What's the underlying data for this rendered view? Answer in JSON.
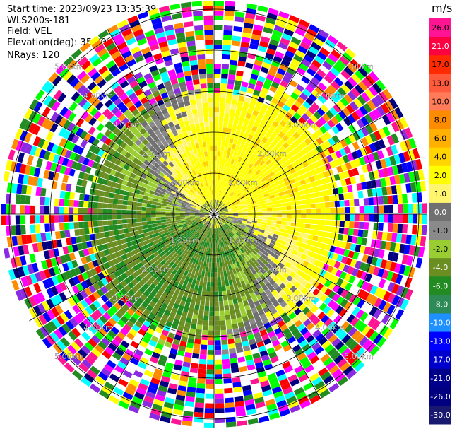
{
  "header": {
    "start_time": "Start time: 2023/09/23 13:35:39",
    "instrument": "WLS200s-181",
    "field": "Field: VEL",
    "elevation": "Elevation(deg): 35.30",
    "nrays": "NRays: 120"
  },
  "chart_data": {
    "type": "heatmap",
    "projection": "polar-ppi",
    "field": "VEL",
    "elevation_deg": 35.3,
    "n_rays": 120,
    "range_ring_labels": [
      "1.00km",
      "2.00km",
      "3.00km",
      "4.00km",
      "5.00km"
    ],
    "range_rings_km": [
      1,
      2,
      3,
      4,
      5
    ],
    "colorbar": {
      "unit": "m/s",
      "tick_labels": [
        "26.0",
        "21.0",
        "17.0",
        "13.0",
        "10.0",
        "8.0",
        "6.0",
        "4.0",
        "2.0",
        "1.0",
        "0.0",
        "-1.0",
        "-2.0",
        "-4.0",
        "-6.0",
        "-8.0",
        "-10.0",
        "-13.0",
        "-17.0",
        "-21.0",
        "-26.0",
        "-30.0"
      ],
      "colors": [
        "#ff1493",
        "#ff0040",
        "#ff2a00",
        "#ff5a3c",
        "#ff7b5a",
        "#ff8c00",
        "#ffb000",
        "#ffd400",
        "#ffff00",
        "#fff56e",
        "#707070",
        "#8a8a8a",
        "#9acd32",
        "#6b8e23",
        "#228b22",
        "#2e8b57",
        "#1e90ff",
        "#0000ff",
        "#0000cd",
        "#00008b",
        "#000080",
        "#191970"
      ]
    },
    "structure_description_colors": {
      "far_noise": [
        "#ff00ff",
        "#ff1493",
        "#00ffff",
        "#0000ff",
        "#ffff00",
        "#ff0000",
        "#00ff00",
        "#8a2be2",
        "#ff8c00",
        "#228b22",
        "#ffffff",
        "#000080"
      ]
    }
  }
}
